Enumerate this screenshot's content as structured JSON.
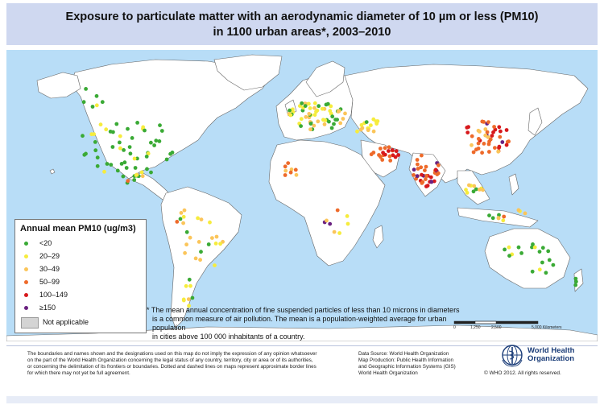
{
  "title": {
    "line1": "Exposure to particulate matter with an aerodynamic diameter of 10 µm or less (PM10)",
    "line2": "in 1100 urban areas*, 2003–2010"
  },
  "legend": {
    "title": "Annual mean PM10 (ug/m3)",
    "classes": [
      {
        "label": "<20",
        "color": "#3aaa35"
      },
      {
        "label": "20–29",
        "color": "#f6ec3d"
      },
      {
        "label": "30–49",
        "color": "#fbc55a"
      },
      {
        "label": "50–99",
        "color": "#ee6a2a"
      },
      {
        "label": "100–149",
        "color": "#d7191c"
      },
      {
        "label": "≥150",
        "color": "#6a2180"
      }
    ],
    "not_applicable": "Not applicable",
    "not_applicable_color": "#d4d4d4"
  },
  "footnote": {
    "line1": "*  The mean annual concentration of fine suspended particles of less than 10 microns in diameters",
    "line2": "is a common measure of air pollution. The mean is a population-weighted average for urban population",
    "line3": "in cities above 100 000 inhabitants of a country."
  },
  "scale": {
    "t0": "0",
    "t1": "1,250",
    "t2": "2,500",
    "t3": "5,000 Kilometers"
  },
  "disclaimer": {
    "line1": "The boundaries and names shown and the designations used on this map do not imply the expression of any opinion whatsoever",
    "line2": "on the part of the World Health Organization concerning the legal status of any country, territory, city or area or of its authorities,",
    "line3": "or concerning the delimitation of its frontiers or boundaries.  Dotted and dashed lines on maps represent approximate border lines",
    "line4": "for which there may not yet be full agreement."
  },
  "source": {
    "line1": "Data Source: World Health Organization",
    "line2": "Map Production: Public Health Information",
    "line3": "and Geographic Information Systems (GIS)",
    "line4": "World Health Organization"
  },
  "org": {
    "line1": "World Health",
    "line2": "Organization"
  },
  "copyright": "© WHO 2012. All rights reserved.",
  "colors": {
    "ocean": "#b8ddf7",
    "land": "#ffffff",
    "border": "#666666",
    "title_band": "#cfd8f0"
  }
}
